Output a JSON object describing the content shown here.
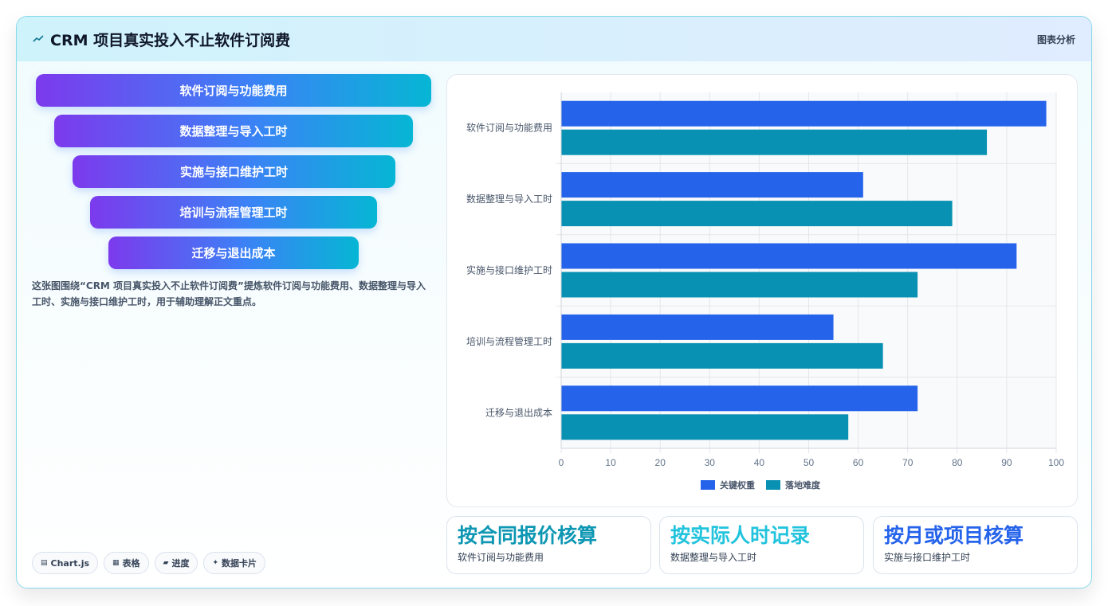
{
  "header": {
    "title": "CRM 项目真实投入不止软件订阅费",
    "right_label": "图表分析",
    "icon": "sparkline-icon"
  },
  "funnel": [
    "软件订阅与功能费用",
    "数据整理与导入工时",
    "实施与接口维护工时",
    "培训与流程管理工时",
    "迁移与退出成本"
  ],
  "description": "这张图围绕“CRM 项目真实投入不止软件订阅费”提炼软件订阅与功能费用、数据整理与导入工时、实施与接口维护工时，用于辅助理解正文重点。",
  "pills": [
    {
      "icon": "chart-icon",
      "glyph": "▤",
      "label": "Chart.js"
    },
    {
      "icon": "table-icon",
      "glyph": "▦",
      "label": "表格"
    },
    {
      "icon": "progress-icon",
      "glyph": "▰",
      "label": "进度"
    },
    {
      "icon": "sparkle-icon",
      "glyph": "✦",
      "label": "数据卡片"
    }
  ],
  "stats": [
    {
      "value": "按合同报价核算",
      "label": "软件订阅与功能费用",
      "color": "#0e97b3"
    },
    {
      "value": "按实际人时记录",
      "label": "数据整理与导入工时",
      "color": "#22c3dd"
    },
    {
      "value": "按月或项目核算",
      "label": "实施与接口维护工时",
      "color": "#2563eb"
    }
  ],
  "chart_data": {
    "type": "bar",
    "orientation": "horizontal",
    "categories": [
      "软件订阅与功能费用",
      "数据整理与导入工时",
      "实施与接口维护工时",
      "培训与流程管理工时",
      "迁移与退出成本"
    ],
    "series": [
      {
        "name": "关键权重",
        "values": [
          98,
          61,
          92,
          55,
          72
        ],
        "color": "#2563eb"
      },
      {
        "name": "落地难度",
        "values": [
          86,
          79,
          72,
          65,
          58
        ],
        "color": "#0891b2"
      }
    ],
    "xlim": [
      0,
      100
    ],
    "xticks": [
      0,
      10,
      20,
      30,
      40,
      50,
      60,
      70,
      80,
      90,
      100
    ],
    "grid": true,
    "legend": "bottom"
  }
}
